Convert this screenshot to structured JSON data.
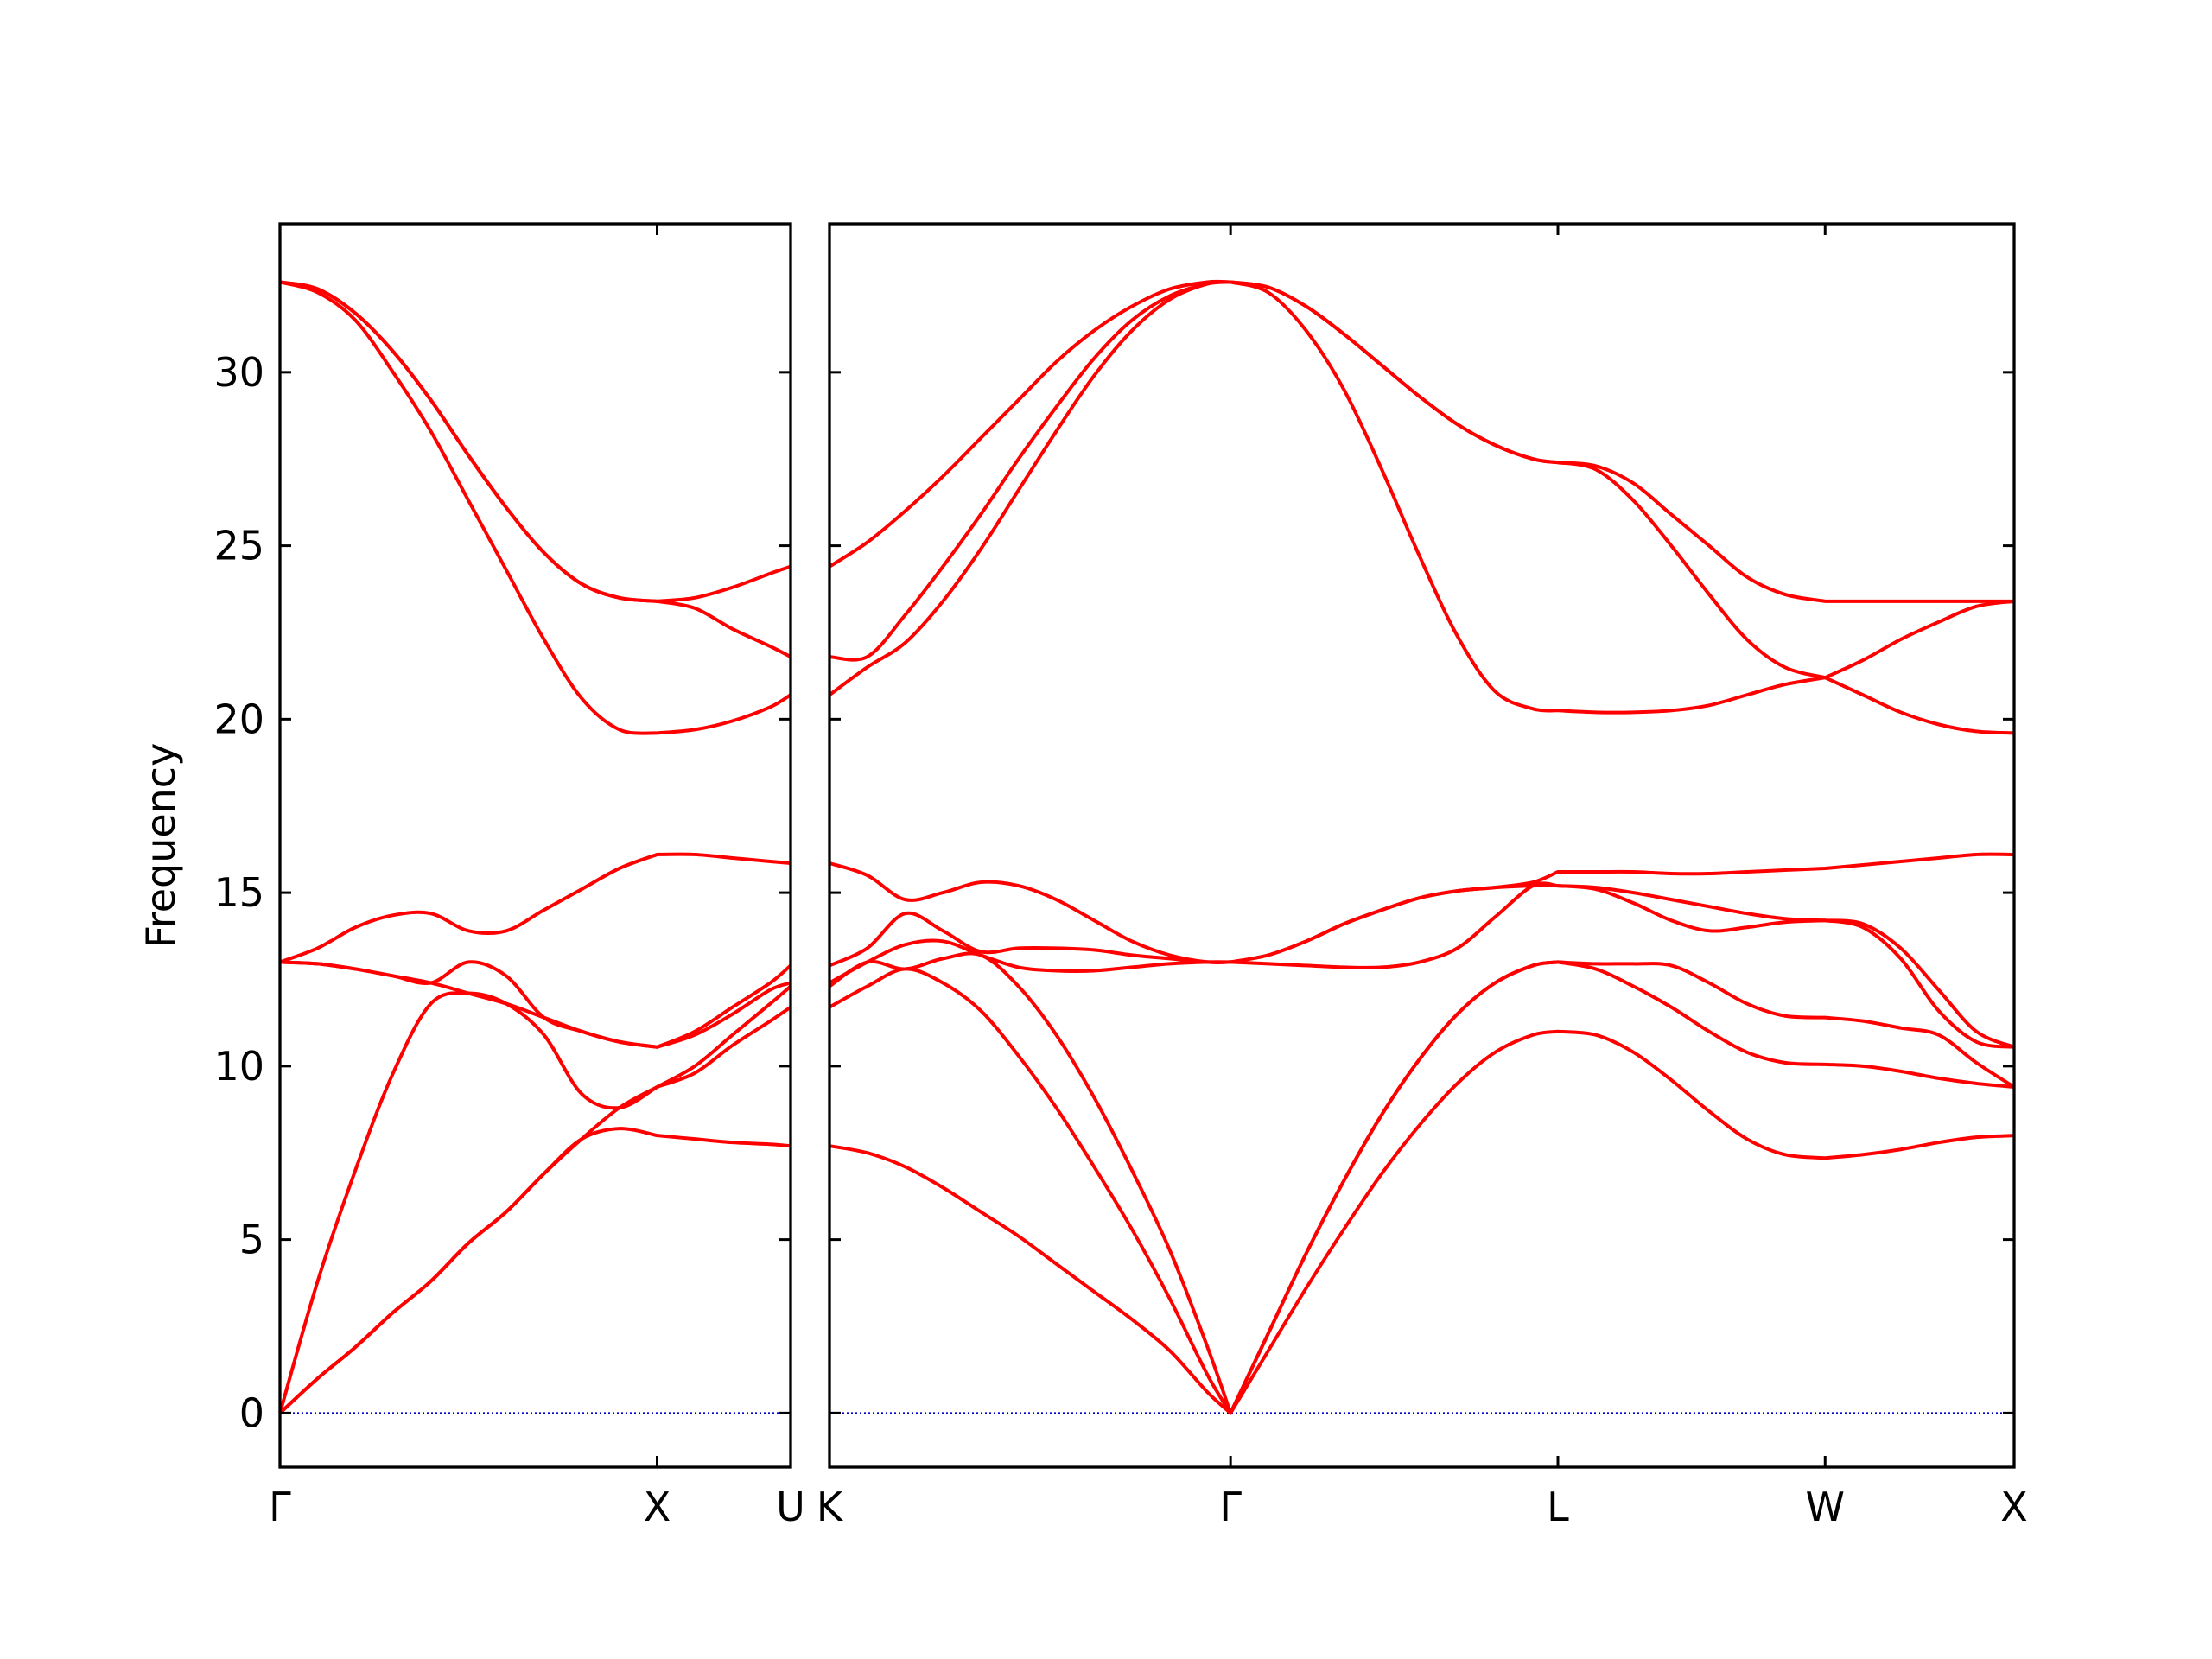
{
  "chart_data": [
    {
      "type": "line",
      "ylabel": "Frequency",
      "color": "#ff0000",
      "x": [
        0,
        0.1,
        0.2,
        0.3,
        0.4,
        0.5,
        0.6,
        0.7,
        0.8,
        0.9,
        1.0,
        1.1,
        1.2,
        1.3,
        1.354
      ],
      "series": [
        {
          "values": [
            0,
            1.0,
            1.9,
            2.9,
            3.8,
            4.9,
            5.8,
            6.9,
            7.9,
            8.2,
            8.0,
            7.9,
            7.8,
            7.75,
            7.7
          ]
        },
        {
          "values": [
            0,
            1.0,
            1.9,
            2.9,
            3.8,
            4.9,
            5.8,
            6.9,
            7.9,
            8.8,
            9.4,
            9.8,
            10.6,
            11.3,
            11.7
          ]
        },
        {
          "values": [
            0,
            3.8,
            7.0,
            9.8,
            11.8,
            12.1,
            11.8,
            10.9,
            9.2,
            8.8,
            9.4,
            10.0,
            10.9,
            11.8,
            12.3
          ]
        },
        {
          "values": [
            13,
            12.95,
            12.8,
            12.6,
            12.4,
            12.1,
            11.8,
            11.4,
            11.0,
            10.7,
            10.55,
            10.9,
            11.5,
            12.2,
            12.4
          ]
        },
        {
          "values": [
            13,
            12.95,
            12.8,
            12.6,
            12.4,
            13.0,
            12.6,
            11.4,
            11.0,
            10.7,
            10.55,
            11.0,
            11.7,
            12.4,
            12.9
          ]
        },
        {
          "values": [
            13,
            13.4,
            14.0,
            14.35,
            14.4,
            13.9,
            13.9,
            14.5,
            15.1,
            15.7,
            16.1,
            16.1,
            16.0,
            15.9,
            15.85
          ]
        },
        {
          "values": [
            32.6,
            32.3,
            31.5,
            30.0,
            28.3,
            26.3,
            24.3,
            22.3,
            20.6,
            19.7,
            19.6,
            19.7,
            19.95,
            20.35,
            20.7
          ]
        },
        {
          "values": [
            32.6,
            32.4,
            31.7,
            30.6,
            29.2,
            27.6,
            26.1,
            24.8,
            23.9,
            23.5,
            23.4,
            23.2,
            22.6,
            22.1,
            21.8
          ]
        },
        {
          "values": [
            32.6,
            32.4,
            31.7,
            30.6,
            29.2,
            27.6,
            26.1,
            24.8,
            23.9,
            23.5,
            23.4,
            23.5,
            23.8,
            24.2,
            24.4
          ]
        }
      ],
      "xlim": [
        0,
        1.354
      ],
      "xticks": [
        {
          "value": 0,
          "label": "Γ"
        },
        {
          "value": 1.0,
          "label": "X"
        },
        {
          "value": 1.354,
          "label": "U"
        }
      ],
      "ylim": [
        -1.56,
        34.28
      ],
      "yticks": [
        0,
        5,
        10,
        15,
        20,
        25,
        30
      ],
      "ytick_labels": true,
      "zero_line": {
        "value": 0,
        "color": "#0000cc"
      }
    },
    {
      "type": "line",
      "color": "#ff0000",
      "x": [
        0,
        0.1,
        0.2,
        0.3,
        0.4,
        0.5,
        0.6,
        0.7,
        0.8,
        0.9,
        1.0,
        1.061,
        1.161,
        1.261,
        1.361,
        1.461,
        1.561,
        1.661,
        1.761,
        1.861,
        1.927,
        2.027,
        2.127,
        2.227,
        2.327,
        2.427,
        2.527,
        2.634,
        2.734,
        2.834,
        2.934,
        3.034,
        3.134
      ],
      "series": [
        {
          "values": [
            7.7,
            7.5,
            7.1,
            6.5,
            5.8,
            5.1,
            4.3,
            3.5,
            2.7,
            1.8,
            0.6,
            0,
            1.8,
            3.6,
            5.3,
            6.9,
            8.3,
            9.5,
            10.4,
            10.9,
            11.0,
            10.9,
            10.4,
            9.6,
            8.7,
            7.9,
            7.45,
            7.35,
            7.45,
            7.6,
            7.8,
            7.95,
            8.0
          ]
        },
        {
          "values": [
            11.7,
            12.3,
            12.8,
            12.4,
            11.6,
            10.3,
            8.8,
            7.1,
            5.3,
            3.3,
            1.1,
            0,
            2.3,
            4.6,
            6.7,
            8.6,
            10.2,
            11.5,
            12.4,
            12.9,
            13.0,
            12.8,
            12.3,
            11.7,
            11.0,
            10.4,
            10.1,
            10.05,
            10.0,
            9.85,
            9.65,
            9.5,
            9.4
          ]
        },
        {
          "values": [
            12.3,
            13.0,
            12.8,
            13.1,
            13.2,
            12.3,
            10.9,
            9.1,
            7.0,
            4.7,
            1.9,
            0,
            2.3,
            4.6,
            6.7,
            8.6,
            10.2,
            11.5,
            12.4,
            12.9,
            13.0,
            12.95,
            12.95,
            12.9,
            12.4,
            11.8,
            11.45,
            11.4,
            11.3,
            11.1,
            10.9,
            10.1,
            9.4
          ]
        },
        {
          "values": [
            12.4,
            13.0,
            13.5,
            13.6,
            13.2,
            12.85,
            12.75,
            12.75,
            12.85,
            12.95,
            13.0,
            13,
            12.95,
            12.9,
            12.85,
            12.85,
            13.0,
            13.4,
            14.3,
            15.2,
            15.2,
            15.1,
            14.7,
            14.2,
            13.9,
            14.0,
            14.15,
            14.2,
            14.0,
            13.1,
            11.6,
            10.7,
            10.55
          ]
        },
        {
          "values": [
            12.9,
            13.4,
            14.4,
            13.9,
            13.3,
            13.4,
            13.4,
            13.35,
            13.2,
            13.1,
            13.0,
            13,
            13.2,
            13.6,
            14.1,
            14.5,
            14.85,
            15.05,
            15.15,
            15.2,
            15.2,
            15.15,
            15.0,
            14.8,
            14.6,
            14.4,
            14.25,
            14.2,
            14.1,
            13.4,
            12.2,
            11.0,
            10.55
          ]
        },
        {
          "values": [
            15.85,
            15.5,
            14.8,
            15.0,
            15.3,
            15.2,
            14.8,
            14.2,
            13.6,
            13.2,
            13.0,
            13,
            13.2,
            13.6,
            14.1,
            14.5,
            14.85,
            15.05,
            15.15,
            15.3,
            15.6,
            15.6,
            15.6,
            15.55,
            15.55,
            15.6,
            15.65,
            15.7,
            15.8,
            15.9,
            16.0,
            16.1,
            16.1
          ]
        },
        {
          "values": [
            20.7,
            21.5,
            22.2,
            23.4,
            24.9,
            26.6,
            28.3,
            29.9,
            31.2,
            32.1,
            32.55,
            32.6,
            32.3,
            31.2,
            29.5,
            27.2,
            24.7,
            22.4,
            20.8,
            20.3,
            20.25,
            20.2,
            20.2,
            20.25,
            20.4,
            20.7,
            21.0,
            21.2,
            20.7,
            20.2,
            19.85,
            19.65,
            19.6
          ]
        },
        {
          "values": [
            21.8,
            21.8,
            23.0,
            24.4,
            25.9,
            27.5,
            29.0,
            30.4,
            31.5,
            32.2,
            32.55,
            32.6,
            32.45,
            31.9,
            31.1,
            30.2,
            29.3,
            28.5,
            27.9,
            27.5,
            27.4,
            27.2,
            26.3,
            25.0,
            23.6,
            22.3,
            21.5,
            21.2,
            21.7,
            22.3,
            22.8,
            23.25,
            23.4
          ]
        },
        {
          "values": [
            24.4,
            25.1,
            26.0,
            27.0,
            28.1,
            29.2,
            30.3,
            31.2,
            31.9,
            32.4,
            32.6,
            32.6,
            32.45,
            31.9,
            31.1,
            30.2,
            29.3,
            28.5,
            27.9,
            27.5,
            27.4,
            27.3,
            26.8,
            25.9,
            25.0,
            24.1,
            23.6,
            23.4,
            23.4,
            23.4,
            23.4,
            23.4,
            23.4
          ]
        }
      ],
      "xlim": [
        0,
        3.134
      ],
      "xticks": [
        {
          "value": 0,
          "label": "K"
        },
        {
          "value": 1.061,
          "label": "Γ"
        },
        {
          "value": 1.927,
          "label": "L"
        },
        {
          "value": 2.634,
          "label": "W"
        },
        {
          "value": 3.134,
          "label": "X"
        }
      ],
      "ylim": [
        -1.56,
        34.28
      ],
      "yticks": [
        0,
        5,
        10,
        15,
        20,
        25,
        30
      ],
      "ytick_labels": false,
      "zero_line": {
        "value": 0,
        "color": "#0000cc"
      }
    }
  ]
}
